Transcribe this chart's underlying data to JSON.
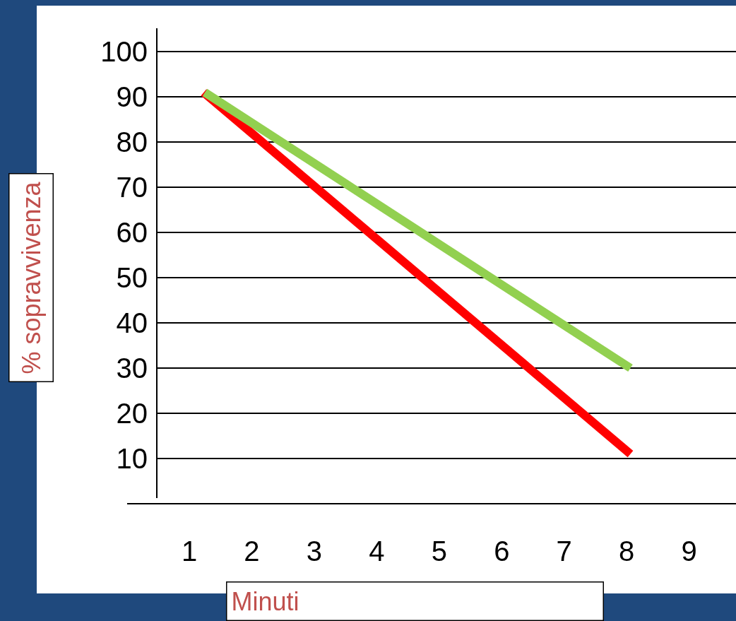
{
  "chart_data": {
    "type": "line",
    "xlabel": "Minuti",
    "ylabel": "% sopravvivenza",
    "xlim": [
      0.48,
      9.75
    ],
    "xticks": [
      1,
      2,
      3,
      4,
      5,
      6,
      7,
      8,
      9
    ],
    "ylim": [
      0,
      105.2
    ],
    "yticks": [
      10,
      20,
      30,
      40,
      50,
      60,
      70,
      80,
      90,
      100
    ],
    "series": [
      {
        "color": "#ff0000",
        "x": [
          1.23,
          8.06
        ],
        "values": [
          91,
          11
        ]
      },
      {
        "color": "#92d050",
        "x": [
          1.25,
          8.06
        ],
        "values": [
          91,
          30
        ]
      }
    ],
    "grid": "y",
    "legend": false,
    "marker": "none",
    "line_style": "solid"
  }
}
